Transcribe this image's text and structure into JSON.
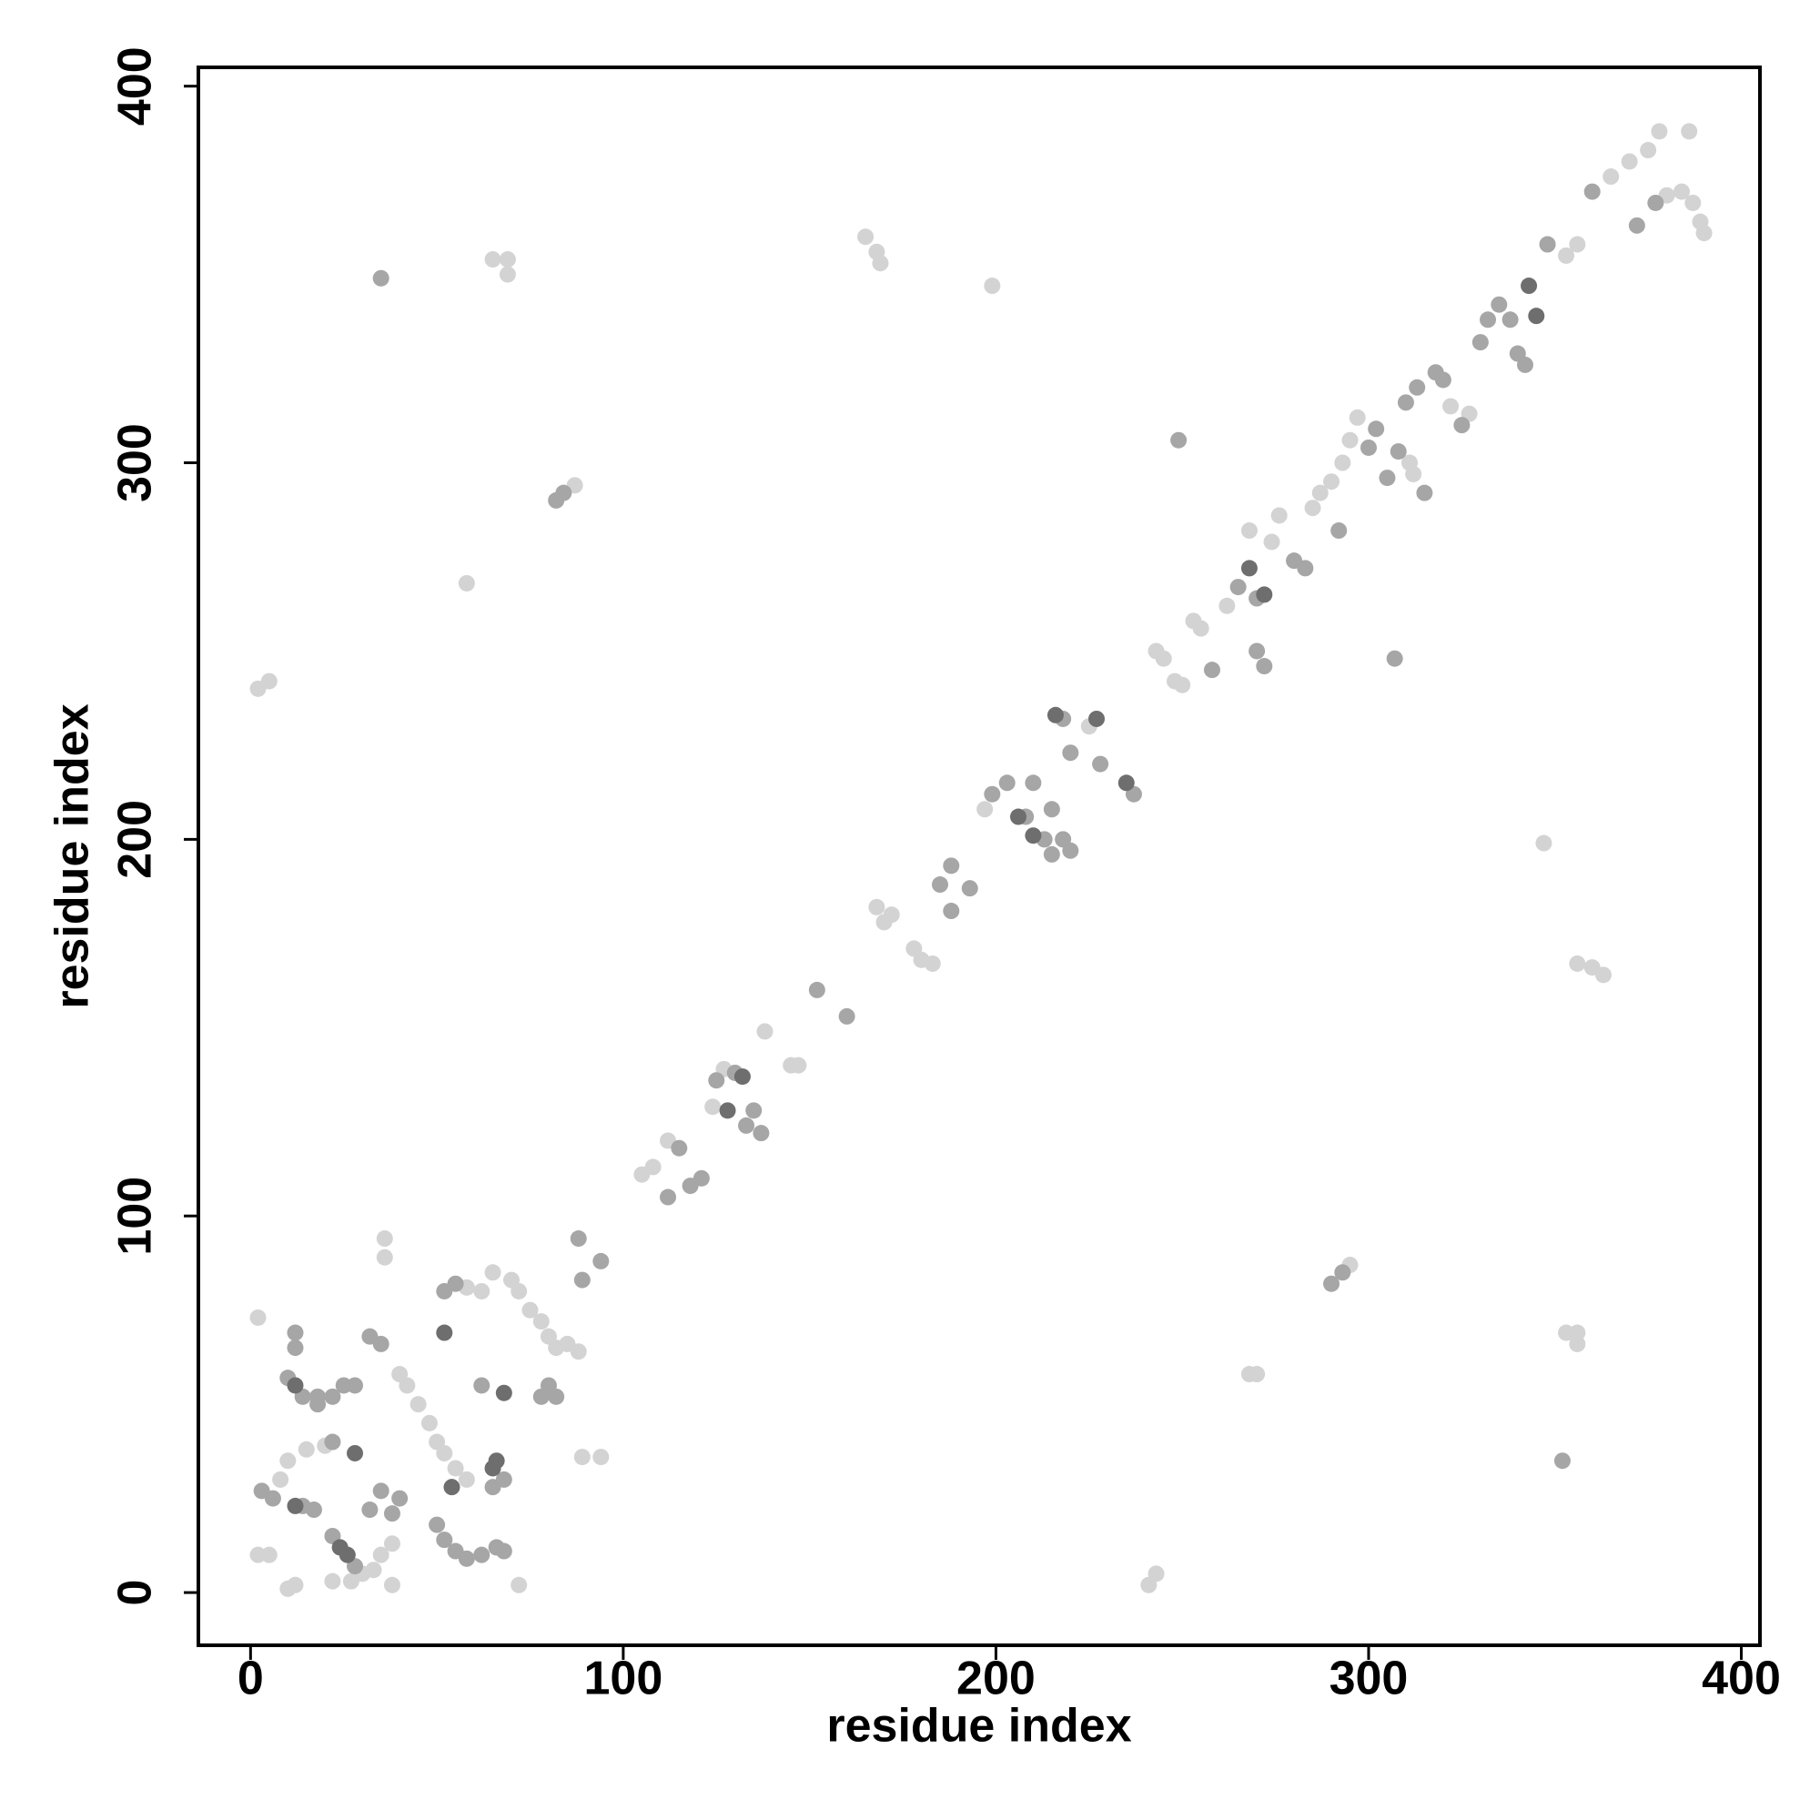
{
  "chart_data": {
    "type": "scatter",
    "x_label": "residue index",
    "y_label": "residue index",
    "xlim": [
      -14,
      405
    ],
    "ylim": [
      -14,
      405
    ],
    "xticks": [
      0,
      100,
      200,
      300,
      400
    ],
    "yticks": [
      0,
      100,
      200,
      300,
      400
    ],
    "grid": false,
    "series": [
      {
        "name": "light",
        "color": "#d3d3d3",
        "x": [
          2,
          5,
          65,
          69,
          69,
          165,
          168,
          169,
          199,
          58,
          87,
          347,
          356,
          360,
          363,
          295,
          268,
          270,
          353,
          356,
          356,
          241,
          243,
          72,
          89,
          94,
          36,
          36,
          2,
          105,
          108,
          112,
          124,
          127,
          138,
          145,
          147,
          168,
          170,
          172,
          178,
          180,
          183,
          197,
          225,
          243,
          245,
          248,
          250,
          253,
          255,
          262,
          268,
          274,
          276,
          285,
          287,
          290,
          293,
          295,
          297,
          311,
          312,
          322,
          327,
          348,
          353,
          356,
          365,
          370,
          375,
          378,
          386,
          380,
          384,
          387,
          389,
          390,
          2,
          5,
          10,
          12,
          8,
          10,
          15,
          20,
          26,
          30,
          33,
          35,
          38,
          40,
          42,
          45,
          48,
          50,
          52,
          55,
          58,
          65,
          70,
          72,
          75,
          78,
          80,
          82,
          85,
          88,
          38,
          22,
          27,
          62,
          58
        ],
        "values": [
          240,
          242,
          354,
          354,
          350,
          360,
          356,
          353,
          347,
          268,
          294,
          199,
          167,
          166,
          164,
          87,
          58,
          58,
          69,
          69,
          66,
          2,
          5,
          2,
          36,
          36,
          94,
          89,
          73,
          111,
          113,
          120,
          129,
          139,
          149,
          140,
          140,
          182,
          178,
          180,
          171,
          168,
          167,
          208,
          230,
          250,
          248,
          242,
          241,
          258,
          256,
          262,
          282,
          279,
          286,
          288,
          292,
          295,
          300,
          306,
          312,
          300,
          297,
          315,
          313,
          358,
          355,
          358,
          376,
          380,
          383,
          388,
          388,
          371,
          372,
          369,
          364,
          361,
          10,
          10,
          1,
          2,
          30,
          35,
          38,
          39,
          10,
          5,
          6,
          10,
          13,
          58,
          55,
          50,
          45,
          40,
          37,
          33,
          30,
          85,
          83,
          80,
          75,
          72,
          68,
          65,
          66,
          64,
          2,
          3,
          3,
          80,
          81
        ]
      },
      {
        "name": "mid",
        "color": "#a6a6a6",
        "x": [
          35,
          82,
          84,
          249,
          307,
          290,
          293,
          352,
          94,
          88,
          89,
          115,
          112,
          118,
          121,
          125,
          130,
          133,
          135,
          137,
          152,
          160,
          185,
          188,
          188,
          193,
          199,
          203,
          208,
          213,
          210,
          215,
          218,
          220,
          228,
          237,
          215,
          218,
          220,
          258,
          265,
          270,
          270,
          272,
          280,
          283,
          292,
          300,
          302,
          305,
          308,
          315,
          310,
          313,
          318,
          320,
          325,
          330,
          332,
          335,
          338,
          340,
          342,
          348,
          360,
          372,
          377,
          6,
          3,
          14,
          17,
          22,
          28,
          32,
          35,
          38,
          40,
          10,
          14,
          18,
          22,
          25,
          28,
          32,
          35,
          50,
          52,
          55,
          58,
          12,
          12,
          52,
          55,
          62,
          68,
          80,
          82,
          78,
          62,
          65,
          68,
          66,
          18,
          22
        ],
        "values": [
          349,
          290,
          292,
          306,
          248,
          82,
          85,
          35,
          88,
          94,
          83,
          118,
          105,
          108,
          110,
          136,
          138,
          124,
          128,
          122,
          160,
          153,
          188,
          193,
          181,
          187,
          212,
          215,
          206,
          200,
          215,
          208,
          232,
          223,
          220,
          212,
          196,
          200,
          197,
          245,
          267,
          264,
          250,
          246,
          274,
          272,
          282,
          304,
          309,
          296,
          303,
          292,
          316,
          320,
          324,
          322,
          310,
          332,
          338,
          342,
          338,
          329,
          326,
          358,
          372,
          363,
          369,
          25,
          27,
          23,
          22,
          15,
          7,
          22,
          27,
          21,
          25,
          57,
          52,
          50,
          52,
          55,
          55,
          68,
          66,
          18,
          14,
          11,
          9,
          65,
          69,
          80,
          82,
          55,
          30,
          55,
          52,
          52,
          10,
          28,
          11,
          12,
          52,
          40
        ]
      },
      {
        "name": "dark",
        "color": "#6e6e6e",
        "x": [
          12,
          24,
          28,
          52,
          68,
          66,
          206,
          210,
          216,
          227,
          235,
          268,
          272,
          343,
          345,
          128,
          132,
          26,
          12,
          54,
          65
        ],
        "values": [
          23,
          12,
          37,
          69,
          53,
          35,
          206,
          201,
          233,
          232,
          215,
          272,
          265,
          347,
          339,
          128,
          137,
          10,
          55,
          28,
          33
        ]
      }
    ]
  }
}
